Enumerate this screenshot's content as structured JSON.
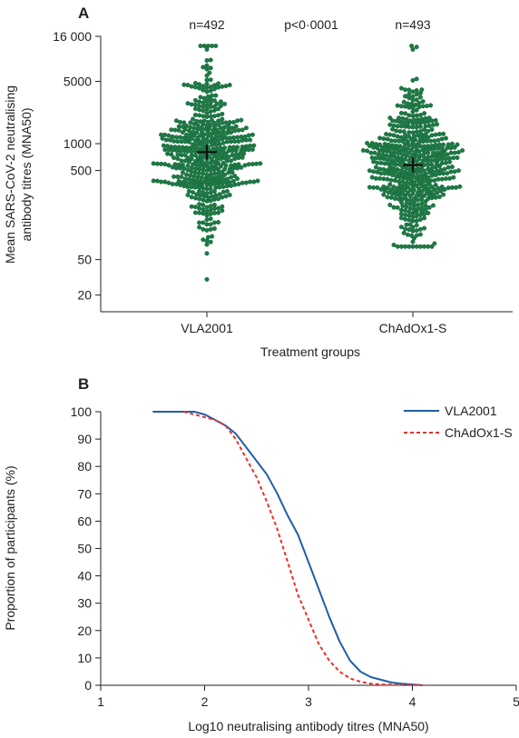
{
  "chart_data": [
    {
      "panel": "A",
      "type": "scatter",
      "subtype": "beeswarm",
      "ylabel": "Mean SARS-CoV-2 neutralising antibody titres (MNA50)",
      "xlabel": "Treatment groups",
      "yscale": "log",
      "ylim": [
        13,
        16000
      ],
      "yticks": [
        {
          "value": 20,
          "label": "20"
        },
        {
          "value": 50,
          "label": "50"
        },
        {
          "value": 500,
          "label": "500"
        },
        {
          "value": 1000,
          "label": "1000"
        },
        {
          "value": 5000,
          "label": "5000"
        },
        {
          "value": 16000,
          "label": "16 000"
        }
      ],
      "categories": [
        "VLA2001",
        "ChAdOx1-S"
      ],
      "annotations": [
        "n=492",
        "p<0·0001",
        "n=493"
      ],
      "point_color": "#1d7a45",
      "groups": [
        {
          "name": "VLA2001",
          "n": 492,
          "gmt": 803,
          "ci": [
            748,
            862
          ],
          "min": 30,
          "max": 12500
        },
        {
          "name": "ChAdOx1-S",
          "n": 493,
          "gmt": 576,
          "ci": [
            538,
            617
          ],
          "min": 70,
          "max": 12500
        }
      ],
      "grid": false
    },
    {
      "panel": "B",
      "type": "line",
      "subtype": "reverse-cumulative",
      "ylabel": "Proportion of participants (%)",
      "xlabel": "Log10 neutralising antibody titres (MNA50)",
      "xlim": [
        1,
        5
      ],
      "ylim": [
        0,
        100
      ],
      "xticks": [
        1,
        2,
        3,
        4,
        5
      ],
      "yticks": [
        0,
        10,
        20,
        30,
        40,
        50,
        60,
        70,
        80,
        90,
        100
      ],
      "legend_position": "top-right",
      "grid": false,
      "series": [
        {
          "name": "VLA2001",
          "color": "#1f5fa8",
          "style": "solid",
          "x": [
            1.5,
            1.9,
            2.0,
            2.1,
            2.2,
            2.3,
            2.4,
            2.5,
            2.6,
            2.7,
            2.8,
            2.9,
            3.0,
            3.1,
            3.2,
            3.3,
            3.4,
            3.5,
            3.6,
            3.7,
            3.8,
            3.9,
            4.0,
            4.1
          ],
          "y": [
            100,
            100,
            99,
            97,
            95,
            92,
            87,
            82,
            77,
            70,
            62,
            55,
            45,
            35,
            25,
            16,
            9,
            5,
            3,
            2,
            1,
            0.6,
            0.3,
            0
          ]
        },
        {
          "name": "ChAdOx1-S",
          "color": "#e8312a",
          "style": "dashed",
          "x": [
            1.8,
            1.9,
            2.0,
            2.1,
            2.2,
            2.3,
            2.4,
            2.5,
            2.6,
            2.7,
            2.8,
            2.9,
            3.0,
            3.1,
            3.2,
            3.3,
            3.4,
            3.5,
            3.6,
            3.7,
            3.8,
            3.9,
            4.0,
            4.1
          ],
          "y": [
            100,
            99,
            98,
            97,
            95,
            90,
            83,
            76,
            67,
            57,
            45,
            33,
            24,
            15,
            9,
            5,
            2.5,
            1.3,
            0.6,
            0.3,
            0.2,
            0.1,
            0.1,
            0
          ]
        }
      ]
    }
  ]
}
